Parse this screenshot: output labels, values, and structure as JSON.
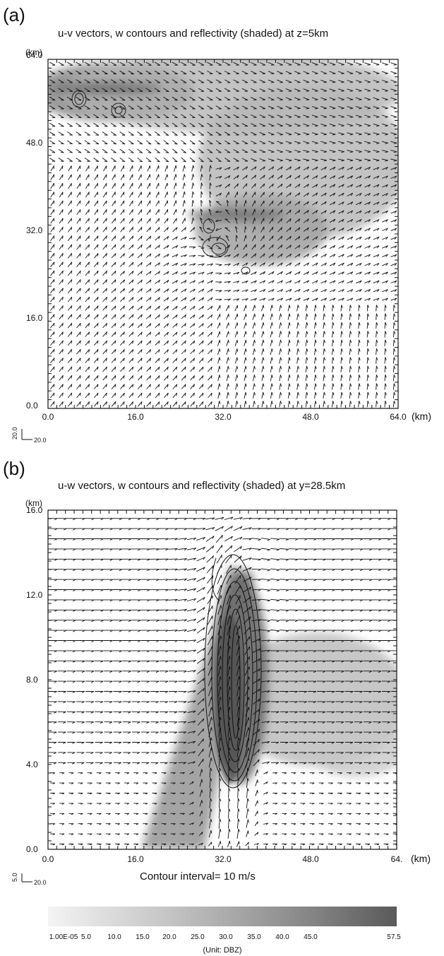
{
  "panel_a": {
    "letter": "(a)",
    "title": "u-v vectors, w contours and reflectivity (shaded) at z=5km",
    "y_unit": "(km)",
    "x_unit": "(km)",
    "x_ticks": [
      "0.0",
      "16.0",
      "32.0",
      "48.0",
      "64.0"
    ],
    "y_ticks": [
      "0.0",
      "16.0",
      "32.0",
      "48.0",
      "64.0"
    ],
    "ref_vector": {
      "v_label": "20.0",
      "u_label": "20.0"
    }
  },
  "panel_b": {
    "letter": "(b)",
    "title": "u-w vectors, w contours and reflectivity (shaded) at y=28.5km",
    "y_unit": "(km)",
    "x_unit": "(km)",
    "x_ticks": [
      "0.0",
      "16.0",
      "32.0",
      "48.0",
      "64."
    ],
    "y_ticks": [
      "0.0",
      "4.0",
      "8.0",
      "12.0",
      "16.0"
    ],
    "ref_vector": {
      "v_label": "5.0",
      "u_label": "20.0"
    },
    "contour_interval": "Contour interval= 10 m/s"
  },
  "colorbar": {
    "labels": [
      "1.00E-05",
      "5.0",
      "10.0",
      "15.0",
      "20.0",
      "25.0",
      "30.0",
      "35.0",
      "40.0",
      "45.0",
      "57.5"
    ],
    "unit": "(Unit: DBZ)"
  },
  "chart_data": [
    {
      "type": "vector field with contours and shaded reflectivity",
      "title": "u-v vectors, w contours and reflectivity (shaded) at z=5km",
      "xlabel": "(km)",
      "ylabel": "(km)",
      "xlim": [
        0,
        64
      ],
      "ylim": [
        0,
        64
      ],
      "x_ticks": [
        0,
        16,
        32,
        48,
        64
      ],
      "y_ticks": [
        0,
        16,
        32,
        48,
        64
      ],
      "grid": false,
      "reflectivity_regions_dbz": [
        {
          "x": [
            0,
            40
          ],
          "y": [
            44,
            64
          ],
          "peak": 45
        },
        {
          "x": [
            26,
            64
          ],
          "y": [
            22,
            64
          ],
          "peak": 45
        }
      ],
      "w_contour_centers": [
        [
          5,
          56
        ],
        [
          12,
          52
        ],
        [
          32,
          28
        ],
        [
          36,
          24
        ]
      ]
    },
    {
      "type": "vector field with contours and shaded reflectivity",
      "title": "u-w vectors, w contours and reflectivity (shaded) at y=28.5km",
      "xlabel": "(km)",
      "ylabel": "(km)",
      "xlim": [
        0,
        64
      ],
      "ylim": [
        0,
        16
      ],
      "x_ticks": [
        0,
        16,
        32,
        48,
        64
      ],
      "y_ticks": [
        0,
        4,
        8,
        12,
        16
      ],
      "grid": false,
      "reflectivity_regions_dbz": [
        {
          "x": [
            24,
            38
          ],
          "y": [
            0,
            14
          ],
          "peak": 57.5
        },
        {
          "x": [
            36,
            64
          ],
          "y": [
            3,
            10
          ],
          "peak": 40
        }
      ],
      "updraft_core": {
        "x": 33,
        "z": [
          2,
          14
        ]
      },
      "contour_interval_m_s": 10
    }
  ]
}
